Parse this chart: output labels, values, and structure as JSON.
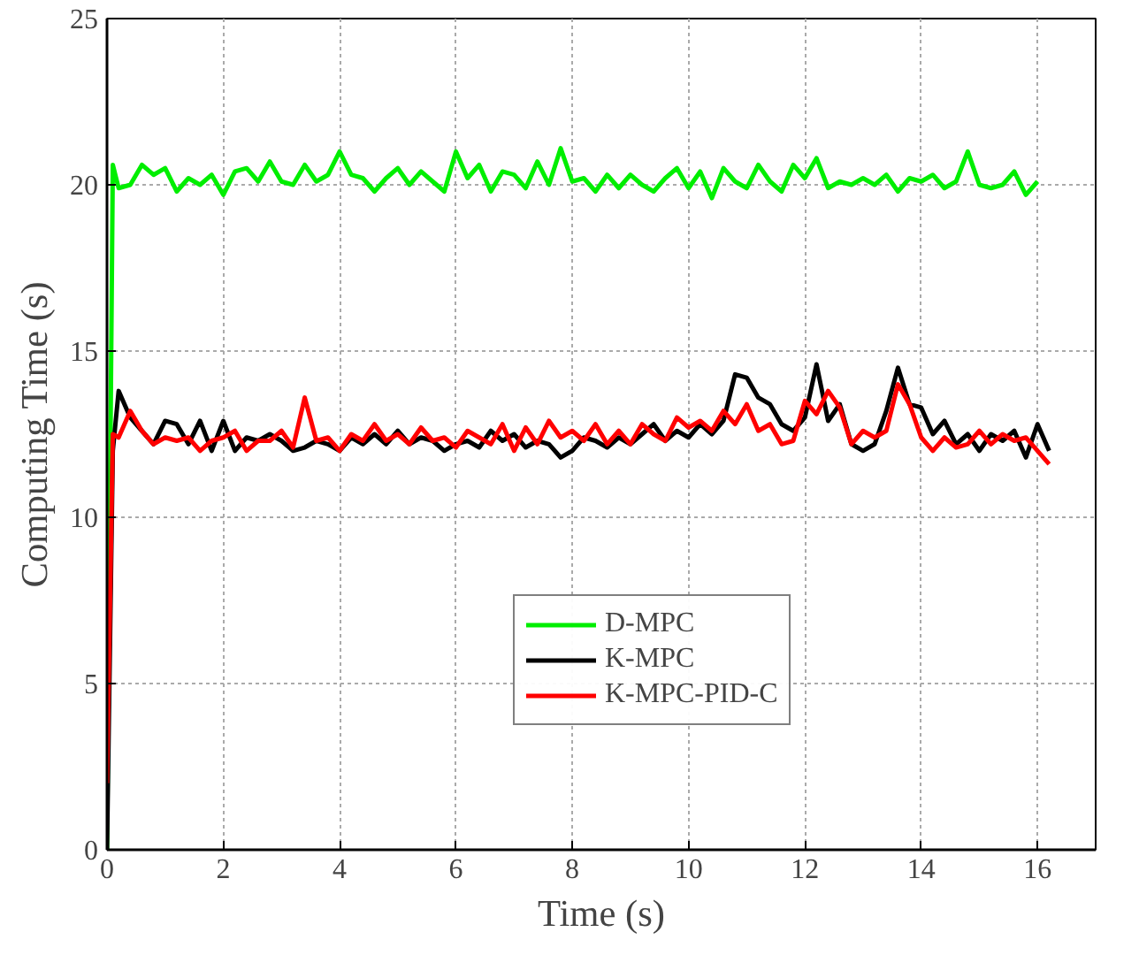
{
  "chart_data": {
    "type": "line",
    "xlabel": "Time (s)",
    "ylabel": "Computing Time (s)",
    "x": [
      0,
      0.1,
      0.2,
      0.4,
      0.6,
      0.8,
      1.0,
      1.2,
      1.4,
      1.6,
      1.8,
      2.0,
      2.2,
      2.4,
      2.6,
      2.8,
      3.0,
      3.2,
      3.4,
      3.6,
      3.8,
      4.0,
      4.2,
      4.4,
      4.6,
      4.8,
      5.0,
      5.2,
      5.4,
      5.6,
      5.8,
      6.0,
      6.2,
      6.4,
      6.6,
      6.8,
      7.0,
      7.2,
      7.4,
      7.6,
      7.8,
      8.0,
      8.2,
      8.4,
      8.6,
      8.8,
      9.0,
      9.2,
      9.4,
      9.6,
      9.8,
      10.0,
      10.2,
      10.4,
      10.6,
      10.8,
      11.0,
      11.2,
      11.4,
      11.6,
      11.8,
      12.0,
      12.2,
      12.4,
      12.6,
      12.8,
      13.0,
      13.2,
      13.4,
      13.6,
      13.8,
      14.0,
      14.2,
      14.4,
      14.6,
      14.8,
      15.0,
      15.2,
      15.4,
      15.6,
      15.8,
      16.0,
      16.2
    ],
    "series": [
      {
        "name": "D-MPC",
        "color": "#00ee00",
        "values": [
          0,
          20.6,
          19.9,
          20.0,
          20.6,
          20.3,
          20.5,
          19.8,
          20.2,
          20.0,
          20.3,
          19.7,
          20.4,
          20.5,
          20.1,
          20.7,
          20.1,
          20.0,
          20.6,
          20.1,
          20.3,
          21.0,
          20.3,
          20.2,
          19.8,
          20.2,
          20.5,
          20.0,
          20.4,
          20.1,
          19.8,
          21.0,
          20.2,
          20.6,
          19.8,
          20.4,
          20.3,
          19.9,
          20.7,
          20.0,
          21.1,
          20.1,
          20.2,
          19.8,
          20.3,
          19.9,
          20.3,
          20.0,
          19.8,
          20.2,
          20.5,
          19.9,
          20.4,
          19.6,
          20.5,
          20.1,
          19.9,
          20.6,
          20.1,
          19.8,
          20.6,
          20.2,
          20.8,
          19.9,
          20.1,
          20.0,
          20.2,
          20.0,
          20.3,
          19.8,
          20.2,
          20.1,
          20.3,
          19.9,
          20.1,
          21.0,
          20.0,
          19.9,
          20.0,
          20.4,
          19.7,
          20.1,
          null
        ]
      },
      {
        "name": "K-MPC",
        "color": "#000000",
        "values": [
          0,
          12.0,
          13.8,
          13.0,
          12.6,
          12.2,
          12.9,
          12.8,
          12.2,
          12.9,
          12.0,
          12.9,
          12.0,
          12.4,
          12.3,
          12.5,
          12.3,
          12.0,
          12.1,
          12.3,
          12.2,
          12.0,
          12.4,
          12.2,
          12.5,
          12.2,
          12.6,
          12.2,
          12.4,
          12.3,
          12.0,
          12.2,
          12.3,
          12.1,
          12.6,
          12.3,
          12.5,
          12.1,
          12.3,
          12.2,
          11.8,
          12.0,
          12.4,
          12.3,
          12.1,
          12.4,
          12.2,
          12.5,
          12.8,
          12.3,
          12.6,
          12.4,
          12.8,
          12.5,
          12.9,
          14.3,
          14.2,
          13.6,
          13.4,
          12.8,
          12.6,
          13.0,
          14.6,
          12.9,
          13.4,
          12.2,
          12.0,
          12.2,
          13.2,
          14.5,
          13.4,
          13.3,
          12.5,
          12.9,
          12.2,
          12.5,
          12.0,
          12.5,
          12.3,
          12.6,
          11.8,
          12.8,
          12.0
        ]
      },
      {
        "name": "K-MPC-PID-C",
        "color": "#ff0000",
        "values": [
          2,
          12.5,
          12.4,
          13.2,
          12.6,
          12.2,
          12.4,
          12.3,
          12.4,
          12.0,
          12.3,
          12.4,
          12.6,
          12.0,
          12.3,
          12.3,
          12.6,
          12.1,
          13.6,
          12.3,
          12.4,
          12.0,
          12.5,
          12.3,
          12.8,
          12.3,
          12.5,
          12.2,
          12.7,
          12.3,
          12.4,
          12.1,
          12.6,
          12.4,
          12.2,
          12.8,
          12.0,
          12.7,
          12.2,
          12.9,
          12.4,
          12.6,
          12.3,
          12.8,
          12.2,
          12.6,
          12.2,
          12.8,
          12.5,
          12.3,
          13.0,
          12.7,
          12.9,
          12.6,
          13.2,
          12.8,
          13.4,
          12.6,
          12.8,
          12.2,
          12.3,
          13.5,
          13.1,
          13.8,
          13.3,
          12.2,
          12.6,
          12.4,
          12.6,
          14.0,
          13.4,
          12.4,
          12.0,
          12.4,
          12.1,
          12.2,
          12.6,
          12.2,
          12.5,
          12.3,
          12.4,
          12.0,
          11.6
        ]
      }
    ],
    "xlim": [
      0,
      17
    ],
    "xticks": [
      0,
      2,
      4,
      6,
      8,
      10,
      12,
      14,
      16
    ],
    "ylim": [
      0,
      25
    ],
    "yticks": [
      0,
      5,
      10,
      15,
      20,
      25
    ],
    "grid": true,
    "legend": "bottom",
    "line_style": "solid",
    "marker": "none"
  }
}
